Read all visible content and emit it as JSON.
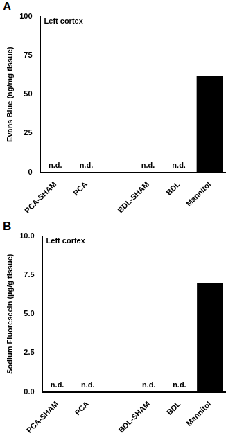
{
  "chart_data": [
    {
      "type": "bar",
      "panel": "A",
      "title": "Left cortex",
      "y_label": "Evans Blue (ng/mg tissue)",
      "categories": [
        "PCA-SHAM",
        "PCA",
        null,
        "BDL-SHAM",
        "BDL",
        "Mannitol"
      ],
      "values": [
        null,
        null,
        null,
        null,
        null,
        62
      ],
      "color": "#000000",
      "ylim": [
        0,
        100
      ],
      "yticks": [
        0,
        25,
        50,
        75,
        100
      ],
      "grid": false,
      "annotations": [
        {
          "x": "PCA-SHAM",
          "text": "n.d."
        },
        {
          "x": "PCA",
          "text": "n.d."
        },
        {
          "x": "BDL-SHAM",
          "text": "n.d."
        },
        {
          "x": "BDL",
          "text": "n.d."
        }
      ]
    },
    {
      "type": "bar",
      "panel": "B",
      "title": "Left cortex",
      "y_label": "Sodium Fluorescein (µg/g tissue)",
      "categories": [
        "PCA-SHAM",
        "PCA",
        null,
        "BDL-SHAM",
        "BDL",
        "Mannitol"
      ],
      "values": [
        null,
        null,
        null,
        null,
        null,
        7.0
      ],
      "color": "#000000",
      "ylim": [
        0,
        10
      ],
      "yticks": [
        {
          "value": 0,
          "label": "0.0"
        },
        {
          "value": 2.5,
          "label": "2.5"
        },
        {
          "value": 5,
          "label": "5.0"
        },
        {
          "value": 7.5,
          "label": "7.5"
        },
        {
          "value": 10,
          "label": "10.0"
        }
      ],
      "grid": false,
      "annotations": [
        {
          "x": "PCA-SHAM",
          "text": "n.d."
        },
        {
          "x": "PCA",
          "text": "n.d."
        },
        {
          "x": "BDL-SHAM",
          "text": "n.d."
        },
        {
          "x": "BDL",
          "text": "n.d."
        }
      ]
    }
  ]
}
